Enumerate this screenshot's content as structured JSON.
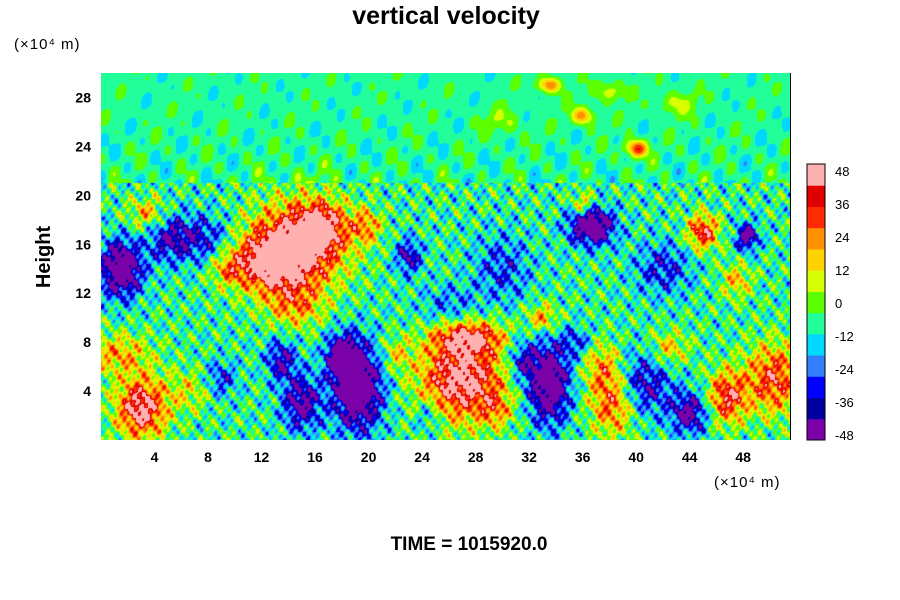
{
  "chart_data": {
    "type": "heatmap",
    "title": "vertical velocity",
    "ylabel": "Height",
    "xlabel": "",
    "x_unit": "(×10⁴ m)",
    "y_unit": "(×10⁴ m)",
    "xlim": [
      0,
      51.5
    ],
    "ylim": [
      0,
      30
    ],
    "x_ticks": [
      4,
      8,
      12,
      16,
      20,
      24,
      28,
      32,
      36,
      40,
      44,
      48
    ],
    "y_ticks": [
      4,
      8,
      12,
      16,
      20,
      24,
      28
    ],
    "colorbar": {
      "ticks": [
        48,
        36,
        24,
        12,
        0,
        -12,
        -24,
        -36,
        -48
      ],
      "range": [
        -52,
        52
      ],
      "palette": [
        "#7a00a8",
        "#00009f",
        "#0000ff",
        "#2f7fff",
        "#00d8ff",
        "#22ff9a",
        "#5cff00",
        "#d8ff00",
        "#ffd200",
        "#ff9000",
        "#ff2a00",
        "#e00000",
        "#ffb0b0"
      ]
    },
    "footer": "TIME = 1015920.0",
    "features": [
      {
        "x": 3,
        "y": 2.6,
        "value": 60,
        "sx": 1.3,
        "sy": 1.7
      },
      {
        "x": 1.2,
        "y": 7,
        "value": 28,
        "sx": 1.8,
        "sy": 1.2
      },
      {
        "x": 27,
        "y": 5,
        "value": 62,
        "sx": 2.2,
        "sy": 2.4
      },
      {
        "x": 27.5,
        "y": 8.4,
        "value": 45,
        "sx": 1.8,
        "sy": 0.9
      },
      {
        "x": 14.8,
        "y": 16,
        "value": 62,
        "sx": 2.4,
        "sy": 2.4
      },
      {
        "x": 12.5,
        "y": 14.5,
        "value": 50,
        "sx": 1.8,
        "sy": 1.6
      },
      {
        "x": 16.5,
        "y": 17.5,
        "value": 40,
        "sx": 1.2,
        "sy": 1.3
      },
      {
        "x": 14.5,
        "y": 11,
        "value": 28,
        "sx": 1.5,
        "sy": 1.3
      },
      {
        "x": 19.8,
        "y": 17.5,
        "value": 30,
        "sx": 0.8,
        "sy": 1
      },
      {
        "x": 19.2,
        "y": 4.3,
        "value": -62,
        "sx": 1.3,
        "sy": 2.5
      },
      {
        "x": 18,
        "y": 6.8,
        "value": -50,
        "sx": 0.8,
        "sy": 1.2
      },
      {
        "x": 15,
        "y": 3,
        "value": -42,
        "sx": 1,
        "sy": 1.6
      },
      {
        "x": 13.5,
        "y": 6.5,
        "value": -35,
        "sx": 0.8,
        "sy": 1.2
      },
      {
        "x": 33.5,
        "y": 4.6,
        "value": -58,
        "sx": 1.1,
        "sy": 2.3
      },
      {
        "x": 31.5,
        "y": 6.5,
        "value": -30,
        "sx": 0.8,
        "sy": 1.2
      },
      {
        "x": 38.3,
        "y": 3,
        "value": 42,
        "sx": 1.2,
        "sy": 1.8
      },
      {
        "x": 37.5,
        "y": 6,
        "value": 28,
        "sx": 1,
        "sy": 1.4
      },
      {
        "x": 40.5,
        "y": 4.5,
        "value": -35,
        "sx": 1.5,
        "sy": 1.8
      },
      {
        "x": 44,
        "y": 2.2,
        "value": -42,
        "sx": 1,
        "sy": 1.2
      },
      {
        "x": 46.8,
        "y": 3.5,
        "value": 48,
        "sx": 1,
        "sy": 1.5
      },
      {
        "x": 50.3,
        "y": 5,
        "value": 45,
        "sx": 1.5,
        "sy": 2
      },
      {
        "x": 1.5,
        "y": 14,
        "value": -60,
        "sx": 1.1,
        "sy": 1.6
      },
      {
        "x": 5,
        "y": 16.5,
        "value": -30,
        "sx": 1.1,
        "sy": 1.4
      },
      {
        "x": 3.5,
        "y": 18.5,
        "value": 28,
        "sx": 1,
        "sy": 0.9
      },
      {
        "x": 7.5,
        "y": 16.5,
        "value": -28,
        "sx": 1.5,
        "sy": 1.4
      },
      {
        "x": 9.5,
        "y": 14,
        "value": 25,
        "sx": 0.9,
        "sy": 1
      },
      {
        "x": 36.7,
        "y": 17.5,
        "value": -58,
        "sx": 1.2,
        "sy": 1.1
      },
      {
        "x": 36,
        "y": 19.3,
        "value": 30,
        "sx": 0.6,
        "sy": 0.6
      },
      {
        "x": 45,
        "y": 17,
        "value": 50,
        "sx": 0.8,
        "sy": 1
      },
      {
        "x": 48.3,
        "y": 16.6,
        "value": -45,
        "sx": 0.6,
        "sy": 0.8
      },
      {
        "x": 42,
        "y": 14,
        "value": -25,
        "sx": 1.5,
        "sy": 1.5
      },
      {
        "x": 47.5,
        "y": 13,
        "value": 25,
        "sx": 0.8,
        "sy": 1
      },
      {
        "x": 23,
        "y": 15,
        "value": -35,
        "sx": 0.7,
        "sy": 1
      },
      {
        "x": 30,
        "y": 14,
        "value": -22,
        "sx": 1.5,
        "sy": 2
      },
      {
        "x": 33,
        "y": 10,
        "value": 30,
        "sx": 0.8,
        "sy": 0.8
      },
      {
        "x": 26,
        "y": 11,
        "value": -18,
        "sx": 1.5,
        "sy": 1.2
      },
      {
        "x": 6.5,
        "y": 4,
        "value": 18,
        "sx": 1.2,
        "sy": 1.2
      },
      {
        "x": 9,
        "y": 5,
        "value": -25,
        "sx": 0.8,
        "sy": 1
      },
      {
        "x": 24.5,
        "y": 2,
        "value": -20,
        "sx": 0.7,
        "sy": 1
      },
      {
        "x": 22,
        "y": 7,
        "value": 20,
        "sx": 0.8,
        "sy": 1
      },
      {
        "x": 29.5,
        "y": 2.5,
        "value": 22,
        "sx": 0.8,
        "sy": 1
      },
      {
        "x": 42.5,
        "y": 7.5,
        "value": 25,
        "sx": 1,
        "sy": 1
      },
      {
        "x": 35.5,
        "y": 8,
        "value": -22,
        "sx": 0.8,
        "sy": 0.8
      },
      {
        "x": 33.5,
        "y": 29,
        "value": 36,
        "sx": 0.6,
        "sy": 0.45
      },
      {
        "x": 36,
        "y": 26.5,
        "value": 32,
        "sx": 0.6,
        "sy": 0.5
      },
      {
        "x": 40,
        "y": 23.8,
        "value": 42,
        "sx": 0.6,
        "sy": 0.5
      },
      {
        "x": 38,
        "y": 28.5,
        "value": 18,
        "sx": 0.8,
        "sy": 0.6
      },
      {
        "x": 43,
        "y": 27.5,
        "value": 15,
        "sx": 1,
        "sy": 0.7
      },
      {
        "x": 30,
        "y": 26,
        "value": 12,
        "sx": 1,
        "sy": 0.8
      }
    ]
  }
}
